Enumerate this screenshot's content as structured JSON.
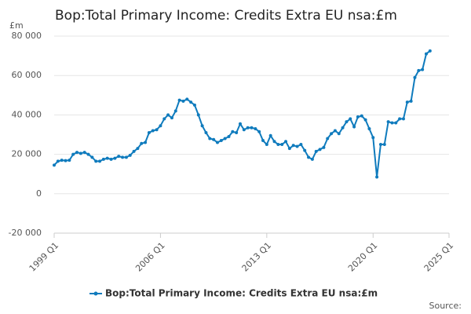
{
  "chart_data": {
    "type": "line",
    "title": "Bop:Total Primary Income: Credits Extra EU nsa:£m",
    "y_unit_label": "£m",
    "source": "Source:",
    "x": [
      1999,
      1999.25,
      1999.5,
      1999.75,
      2000,
      2000.25,
      2000.5,
      2000.75,
      2001,
      2001.25,
      2001.5,
      2001.75,
      2002,
      2002.25,
      2002.5,
      2002.75,
      2003,
      2003.25,
      2003.5,
      2003.75,
      2004,
      2004.25,
      2004.5,
      2004.75,
      2005,
      2005.25,
      2005.5,
      2005.75,
      2006,
      2006.25,
      2006.5,
      2006.75,
      2007,
      2007.25,
      2007.5,
      2007.75,
      2008,
      2008.25,
      2008.5,
      2008.75,
      2009,
      2009.25,
      2009.5,
      2009.75,
      2010,
      2010.25,
      2010.5,
      2010.75,
      2011,
      2011.25,
      2011.5,
      2011.75,
      2012,
      2012.25,
      2012.5,
      2012.75,
      2013,
      2013.25,
      2013.5,
      2013.75,
      2014,
      2014.25,
      2014.5,
      2014.75,
      2015,
      2015.25,
      2015.5,
      2015.75,
      2016,
      2016.25,
      2016.5,
      2016.75,
      2017,
      2017.25,
      2017.5,
      2017.75,
      2018,
      2018.25,
      2018.5,
      2018.75,
      2019,
      2019.25,
      2019.5,
      2019.75,
      2020,
      2020.25,
      2020.5,
      2020.75,
      2021,
      2021.25,
      2021.5,
      2021.75,
      2022,
      2022.25,
      2022.5,
      2022.75,
      2023,
      2023.25,
      2023.5,
      2023.75
    ],
    "series": [
      {
        "name": "Bop:Total Primary Income: Credits Extra EU nsa:£m",
        "color": "#0f7bbd",
        "values": [
          14500,
          16500,
          17000,
          16800,
          17000,
          20000,
          21000,
          20500,
          21000,
          20000,
          18500,
          16500,
          16500,
          17500,
          18000,
          17500,
          18000,
          19000,
          18500,
          18500,
          19500,
          21500,
          23000,
          25500,
          26000,
          31000,
          32000,
          32500,
          34500,
          38000,
          40000,
          38500,
          42000,
          47500,
          47000,
          48000,
          46500,
          45000,
          40000,
          34500,
          31000,
          28000,
          27500,
          26000,
          27000,
          28000,
          29000,
          31500,
          31000,
          35500,
          32500,
          33500,
          33500,
          33000,
          31500,
          27000,
          25000,
          29500,
          26500,
          25000,
          25000,
          26500,
          23000,
          24500,
          24000,
          25000,
          22000,
          18500,
          17500,
          21500,
          22500,
          23500,
          28000,
          30500,
          32000,
          30500,
          33500,
          36500,
          38000,
          34000,
          39000,
          39500,
          37500,
          33000,
          28500,
          8500,
          25000,
          25000,
          36500,
          36000,
          36000,
          38000,
          38000,
          46500,
          47000,
          59000,
          62500,
          63000,
          71000,
          72500
        ]
      }
    ],
    "xlim": [
      1999,
      2025
    ],
    "xticks": [
      {
        "value": 1999,
        "label": "1999 Q1"
      },
      {
        "value": 2006,
        "label": "2006 Q1"
      },
      {
        "value": 2013,
        "label": "2013 Q1"
      },
      {
        "value": 2020,
        "label": "2020 Q1"
      },
      {
        "value": 2025,
        "label": "2025 Q1"
      }
    ],
    "ylim": [
      -20000,
      80000
    ],
    "yticks": [
      {
        "value": -20000,
        "label": "-20 000"
      },
      0,
      {
        "value": 20000,
        "label": "20 000"
      },
      {
        "value": 40000,
        "label": "40 000"
      },
      {
        "value": 60000,
        "label": "60 000"
      },
      {
        "value": 80000,
        "label": "80 000"
      }
    ],
    "grid": true
  }
}
